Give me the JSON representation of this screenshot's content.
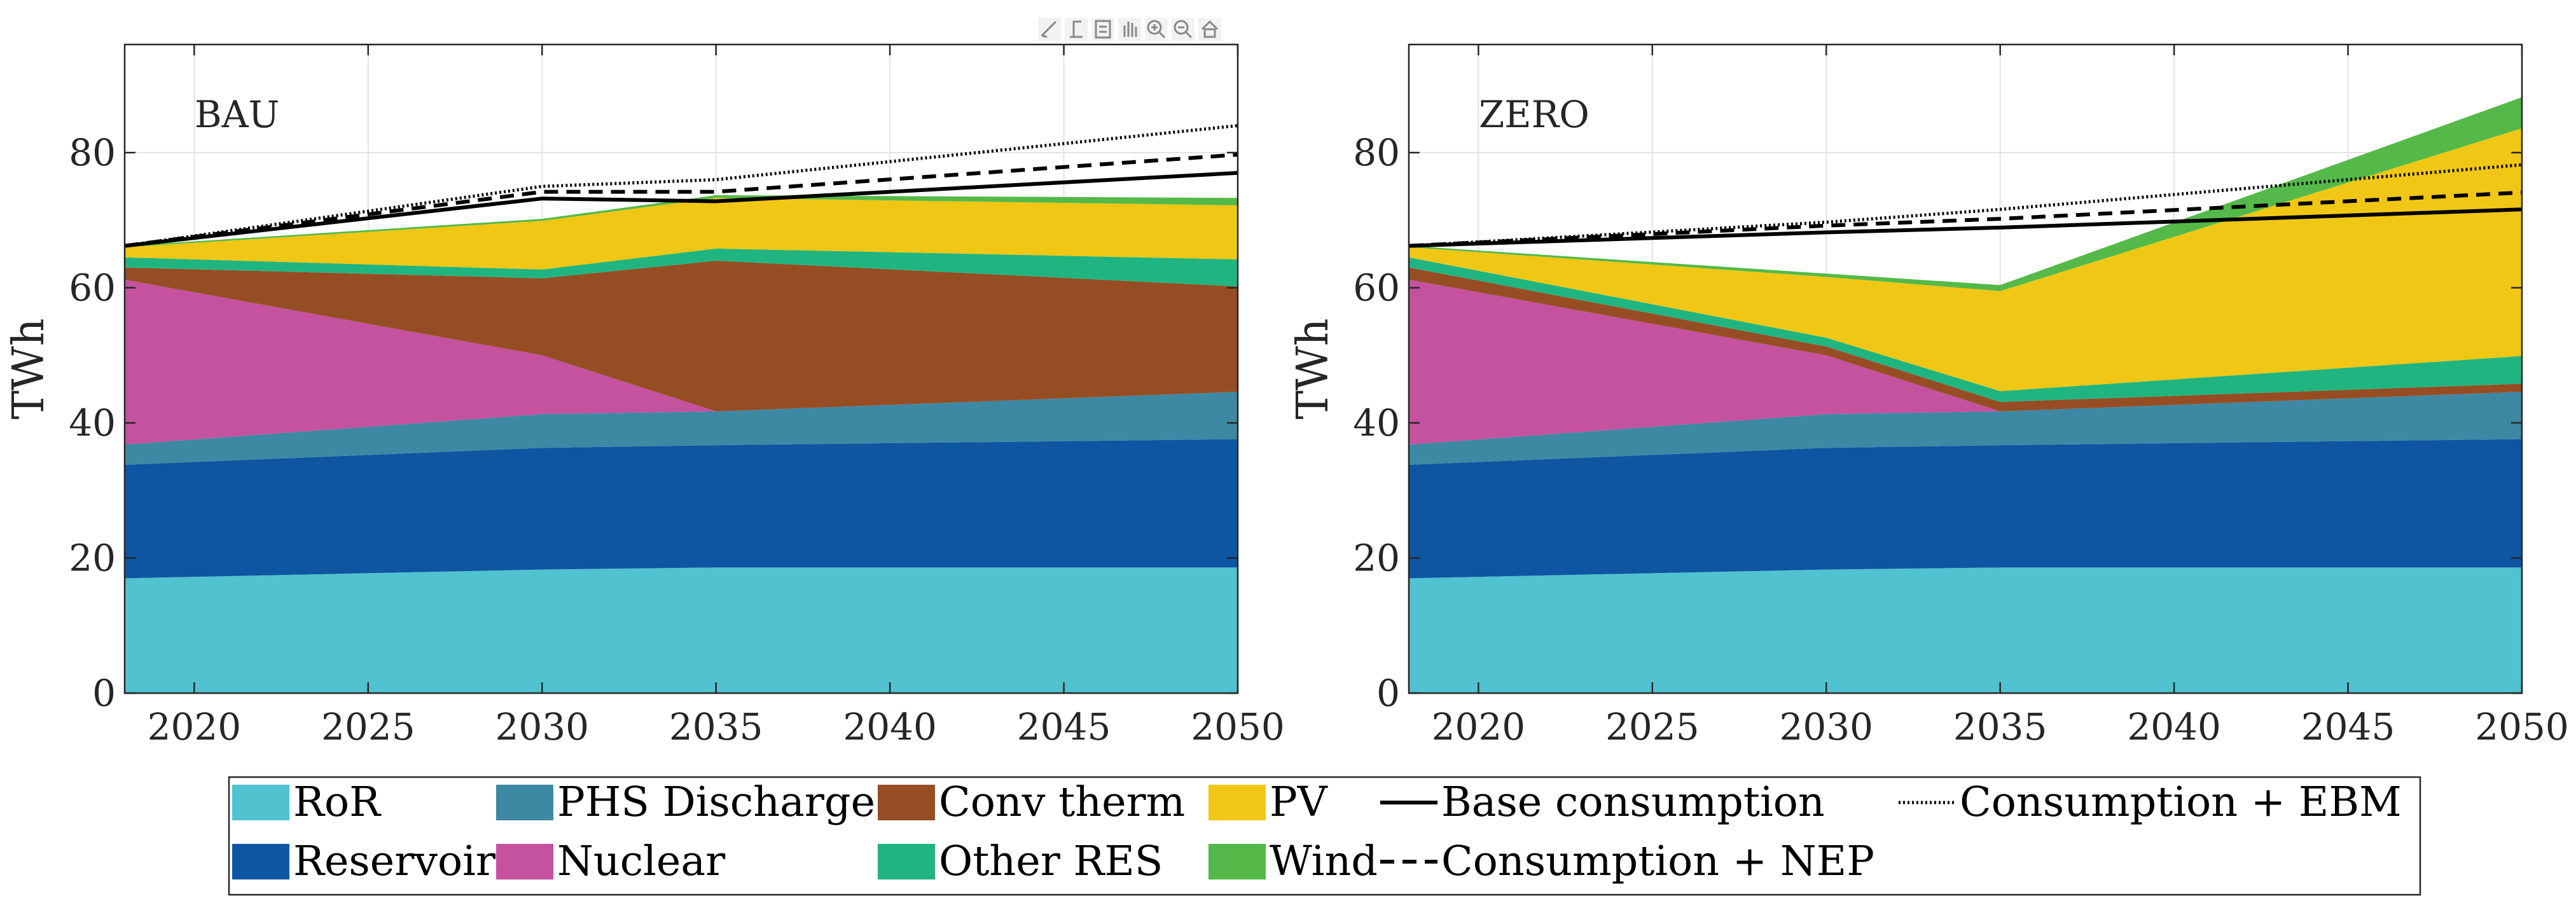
{
  "chart_data": [
    {
      "type": "area",
      "panel_label": "BAU",
      "x": [
        2018,
        2030,
        2035,
        2050
      ],
      "xticks": [
        2020,
        2025,
        2030,
        2035,
        2040,
        2045,
        2050
      ],
      "xlim": [
        2018,
        2050
      ],
      "ylabel": "TWh",
      "yticks": [
        0,
        20,
        40,
        60,
        80
      ],
      "ylim": [
        0,
        96
      ],
      "grid": true,
      "stack": [
        {
          "name": "RoR",
          "values": [
            17,
            18.3,
            18.6,
            18.6
          ]
        },
        {
          "name": "Reservoir",
          "values": [
            16.8,
            18,
            18.1,
            19
          ]
        },
        {
          "name": "PHS Discharge",
          "values": [
            3,
            5,
            5,
            7
          ]
        },
        {
          "name": "Nuclear",
          "values": [
            24.4,
            8.7,
            0,
            0
          ]
        },
        {
          "name": "Conv therm",
          "values": [
            1.8,
            11.4,
            22.3,
            15.6
          ]
        },
        {
          "name": "Other RES",
          "values": [
            1.5,
            1.3,
            1.8,
            4
          ]
        },
        {
          "name": "PV",
          "values": [
            1.5,
            7.2,
            7.5,
            8
          ]
        },
        {
          "name": "Wind",
          "values": [
            0.2,
            0.3,
            0.4,
            1.1
          ]
        }
      ],
      "lines": [
        {
          "name": "Base consumption",
          "values": [
            66.2,
            73.2,
            72.8,
            77
          ]
        },
        {
          "name": "Consumption + NEP",
          "values": [
            66.2,
            74.2,
            74.2,
            79.7
          ]
        },
        {
          "name": "Consumption + EBM",
          "values": [
            66.2,
            75,
            76,
            84
          ]
        }
      ]
    },
    {
      "type": "area",
      "panel_label": "ZERO",
      "x": [
        2018,
        2030,
        2035,
        2050
      ],
      "xticks": [
        2020,
        2025,
        2030,
        2035,
        2040,
        2045,
        2050
      ],
      "xlim": [
        2018,
        2050
      ],
      "ylabel": "TWh",
      "yticks": [
        0,
        20,
        40,
        60,
        80
      ],
      "ylim": [
        0,
        96
      ],
      "grid": true,
      "stack": [
        {
          "name": "RoR",
          "values": [
            17,
            18.3,
            18.6,
            18.6
          ]
        },
        {
          "name": "Reservoir",
          "values": [
            16.8,
            18,
            18.1,
            19
          ]
        },
        {
          "name": "PHS Discharge",
          "values": [
            3,
            5,
            5,
            7
          ]
        },
        {
          "name": "Nuclear",
          "values": [
            24.4,
            8.7,
            0,
            0
          ]
        },
        {
          "name": "Conv therm",
          "values": [
            1.8,
            1.3,
            1.4,
            1.2
          ]
        },
        {
          "name": "Other RES",
          "values": [
            1.5,
            1.3,
            1.6,
            4.1
          ]
        },
        {
          "name": "PV",
          "values": [
            1.5,
            9,
            14.8,
            33.7
          ]
        },
        {
          "name": "Wind",
          "values": [
            0.2,
            0.5,
            0.9,
            4.6
          ]
        }
      ],
      "lines": [
        {
          "name": "Base consumption",
          "values": [
            66.2,
            68.2,
            68.9,
            71.6
          ]
        },
        {
          "name": "Consumption + NEP",
          "values": [
            66.2,
            69.2,
            70.2,
            74.1
          ]
        },
        {
          "name": "Consumption + EBM",
          "values": [
            66.2,
            69.7,
            71.6,
            78.2
          ]
        }
      ]
    }
  ],
  "series_styles": {
    "RoR": "#51c2cf",
    "Reservoir": "#0e56a2",
    "PHS Discharge": "#3d88a3",
    "Nuclear": "#c4529f",
    "Conv therm": "#974d24",
    "Other RES": "#20b580",
    "PV": "#f1c715",
    "Wind": "#54b948",
    "Base consumption": "solid",
    "Consumption + NEP": "dashed",
    "Consumption + EBM": "dotted"
  },
  "legend": {
    "items": [
      {
        "label": "RoR",
        "kind": "patch",
        "color": "#51c2cf"
      },
      {
        "label": "PHS Discharge",
        "kind": "patch",
        "color": "#3d88a3"
      },
      {
        "label": "Conv therm",
        "kind": "patch",
        "color": "#974d24"
      },
      {
        "label": "PV",
        "kind": "patch",
        "color": "#f1c715"
      },
      {
        "label": "Base consumption",
        "kind": "line",
        "style": "solid"
      },
      {
        "label": "Consumption + EBM",
        "kind": "line",
        "style": "dotted"
      },
      {
        "label": "Reservoir",
        "kind": "patch",
        "color": "#0e56a2"
      },
      {
        "label": "Nuclear",
        "kind": "patch",
        "color": "#c4529f"
      },
      {
        "label": "Other RES",
        "kind": "patch",
        "color": "#20b580"
      },
      {
        "label": "Wind",
        "kind": "patch",
        "color": "#54b948"
      },
      {
        "label": "Consumption + NEP",
        "kind": "line",
        "style": "dashed"
      }
    ]
  },
  "toolbar": {
    "icons": [
      "brush-icon",
      "data-tip-icon",
      "legend-icon",
      "pan-icon",
      "zoom-in-icon",
      "zoom-out-icon",
      "home-icon"
    ]
  }
}
